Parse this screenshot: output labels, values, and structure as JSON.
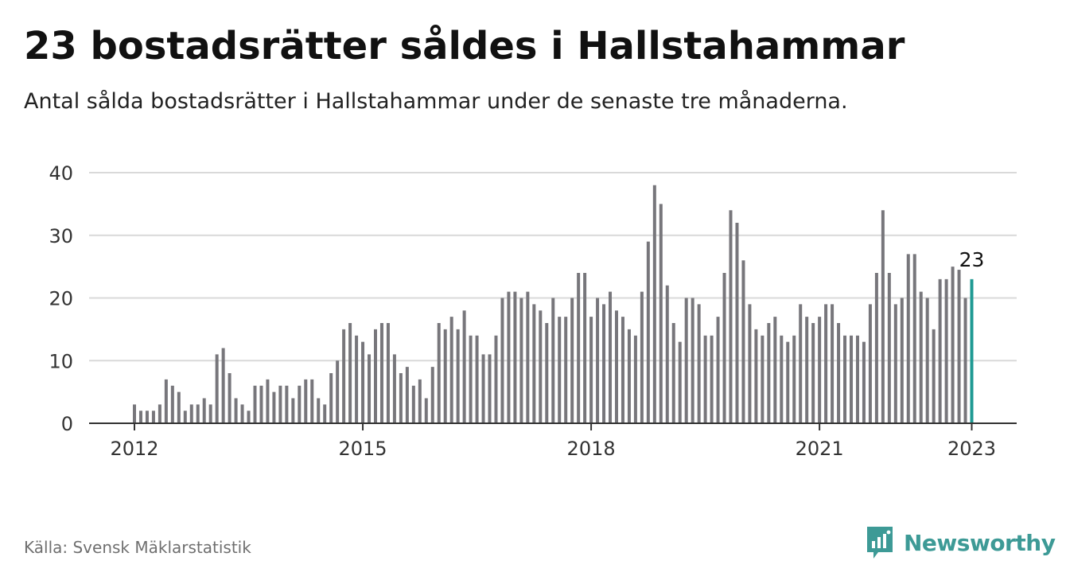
{
  "title": "23 bostadsrätter såldes i Hallstahammar",
  "subtitle": "Antal sålda bostadsrätter i Hallstahammar under de senaste tre månaderna.",
  "source": "Källa: Svensk Mäklarstatistik",
  "brand": "Newsworthy",
  "colors": {
    "bar": "#77767b",
    "highlight": "#1f9a93",
    "grid": "#d9d9d9",
    "axis": "#333333",
    "brand": "#3d9a96"
  },
  "chart_data": {
    "type": "bar",
    "title": "23 bostadsrätter såldes i Hallstahammar",
    "ylim": [
      0,
      40
    ],
    "yticks": [
      0,
      10,
      20,
      30,
      40
    ],
    "xticks": [
      "2012",
      "2015",
      "2018",
      "2021",
      "2023"
    ],
    "grid": true,
    "start": "2012-01",
    "end": "2023-01",
    "highlight_label": "23",
    "values": [
      3,
      2,
      2,
      2,
      3,
      7,
      6,
      5,
      2,
      3,
      3,
      4,
      3,
      11,
      12,
      8,
      4,
      3,
      2,
      6,
      6,
      7,
      5,
      6,
      6,
      4,
      6,
      7,
      7,
      4,
      3,
      8,
      10,
      15,
      16,
      14,
      13,
      11,
      15,
      16,
      16,
      11,
      8,
      9,
      6,
      7,
      4,
      9,
      16,
      15,
      17,
      15,
      18,
      14,
      14,
      11,
      11,
      14,
      20,
      21,
      21,
      20,
      21,
      19,
      18,
      16,
      20,
      17,
      17,
      20,
      24,
      24,
      17,
      20,
      19,
      21,
      18,
      17,
      15,
      14,
      21,
      29,
      38,
      35,
      22,
      16,
      13,
      20,
      20,
      19,
      14,
      14,
      17,
      24,
      34,
      32,
      26,
      19,
      15,
      14,
      16,
      17,
      14,
      13,
      14,
      19,
      17,
      16,
      17,
      19,
      19,
      16,
      14,
      14,
      14,
      13,
      19,
      24,
      34,
      24,
      19,
      20,
      27,
      27,
      21,
      20,
      15,
      23,
      23,
      25,
      24.5,
      20,
      23
    ]
  }
}
